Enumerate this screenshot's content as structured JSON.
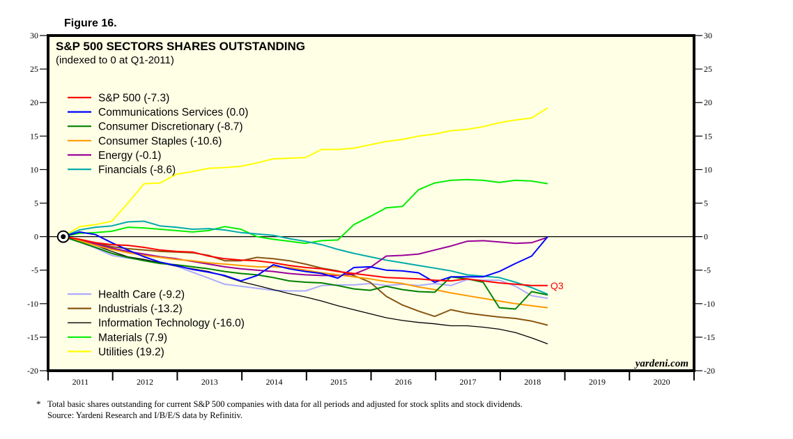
{
  "figure_label": "Figure 16.",
  "footnote": {
    "marker": "*",
    "line1": "Total basic shares outstanding for current S&P 500 companies with data for all periods and adjusted for stock splits and stock dividends.",
    "line2": "Source: Yardeni Research and I/B/E/S data by Refinitiv."
  },
  "watermark": "yardeni.com",
  "end_label": "Q3",
  "chart_data": {
    "type": "line",
    "title": "S&P 500 SECTORS SHARES OUTSTANDING",
    "subtitle": "(indexed to 0 at Q1-2011)",
    "xlabel": "",
    "ylabel": "",
    "ylim": [
      -20,
      30
    ],
    "xlim": [
      2010.75,
      2021.0
    ],
    "yticks": [
      -20,
      -15,
      -10,
      -5,
      0,
      5,
      10,
      15,
      20,
      25,
      30
    ],
    "xticks": [
      "2011",
      "2012",
      "2013",
      "2014",
      "2015",
      "2016",
      "2017",
      "2018",
      "2019",
      "2020"
    ],
    "grid": false,
    "zero_line": true,
    "legend_placement": "top-left and bottom-left",
    "x_start": "Q1-2011",
    "x_end": "Q3-2018",
    "x_step": "quarter",
    "series": [
      {
        "name": "S&P 500 (-7.3)",
        "color": "#ff0000",
        "legend_group": "top",
        "values": [
          0,
          -0.4,
          -0.9,
          -1.2,
          -1.3,
          -1.6,
          -2.0,
          -2.2,
          -2.3,
          -2.9,
          -3.3,
          -3.5,
          -3.6,
          -3.9,
          -4.3,
          -4.6,
          -4.8,
          -5.2,
          -5.5,
          -5.8,
          -6.1,
          -6.2,
          -6.3,
          -6.5,
          -6.6,
          -6.3,
          -6.6,
          -6.9,
          -7.1,
          -7.3,
          -7.3
        ]
      },
      {
        "name": "Communications Services (0.0)",
        "color": "#0000ff",
        "legend_group": "top",
        "values": [
          0,
          0.7,
          0.3,
          -0.9,
          -2.0,
          -3.0,
          -3.8,
          -4.3,
          -4.9,
          -5.3,
          -5.8,
          -6.6,
          -5.8,
          -4.2,
          -4.8,
          -5.2,
          -5.5,
          -6.2,
          -4.6,
          -4.5,
          -5.0,
          -5.1,
          -5.4,
          -6.8,
          -6.0,
          -6.0,
          -6.0,
          -5.2,
          -4.0,
          -2.9,
          0.0
        ]
      },
      {
        "name": "Consumer Discretionary (-8.7)",
        "color": "#008000",
        "legend_group": "top",
        "values": [
          0,
          -0.8,
          -1.6,
          -2.5,
          -3.1,
          -3.6,
          -4.0,
          -4.2,
          -4.5,
          -4.8,
          -5.2,
          -5.5,
          -5.7,
          -6.1,
          -6.6,
          -6.8,
          -6.9,
          -7.3,
          -7.8,
          -8.0,
          -7.4,
          -7.9,
          -8.2,
          -8.3,
          -6.0,
          -6.3,
          -6.8,
          -10.6,
          -10.8,
          -8.2,
          -8.7
        ]
      },
      {
        "name": "Consumer Staples (-10.6)",
        "color": "#ff9900",
        "legend_group": "top",
        "values": [
          0,
          -0.6,
          -1.3,
          -1.9,
          -2.4,
          -2.8,
          -3.1,
          -3.4,
          -3.6,
          -3.9,
          -4.1,
          -4.3,
          -4.5,
          -4.5,
          -4.6,
          -5.0,
          -5.4,
          -5.7,
          -6.0,
          -6.3,
          -6.7,
          -7.0,
          -7.5,
          -7.9,
          -8.4,
          -8.8,
          -9.2,
          -9.6,
          -10.0,
          -10.3,
          -10.6
        ]
      },
      {
        "name": "Energy (-0.1)",
        "color": "#990099",
        "legend_group": "top",
        "values": [
          0,
          -0.5,
          -1.1,
          -1.7,
          -2.2,
          -2.6,
          -3.0,
          -3.3,
          -3.7,
          -4.1,
          -4.5,
          -4.8,
          -5.0,
          -5.2,
          -5.5,
          -5.7,
          -5.8,
          -5.8,
          -5.6,
          -4.6,
          -2.9,
          -2.8,
          -2.6,
          -2.0,
          -1.4,
          -0.7,
          -0.6,
          -0.8,
          -1.0,
          -0.9,
          -0.1
        ]
      },
      {
        "name": "Financials (-8.6)",
        "color": "#00aaaa",
        "legend_group": "top",
        "values": [
          0,
          1.0,
          1.4,
          1.6,
          2.2,
          2.3,
          1.6,
          1.4,
          1.1,
          1.2,
          1.0,
          0.6,
          0.4,
          0.2,
          -0.3,
          -0.7,
          -1.2,
          -1.9,
          -2.5,
          -3.0,
          -3.5,
          -3.9,
          -4.3,
          -4.7,
          -5.1,
          -5.7,
          -5.9,
          -6.1,
          -6.8,
          -7.6,
          -8.6
        ]
      },
      {
        "name": "Health Care (-9.2)",
        "color": "#aaaaff",
        "legend_group": "bottom",
        "values": [
          0,
          -0.8,
          -1.7,
          -2.8,
          -3.2,
          -3.5,
          -3.9,
          -4.4,
          -5.3,
          -6.2,
          -7.1,
          -7.4,
          -7.7,
          -8.0,
          -8.1,
          -8.1,
          -7.3,
          -7.2,
          -7.2,
          -7.0,
          -7.3,
          -7.1,
          -7.3,
          -7.0,
          -7.3,
          -6.4,
          -6.5,
          -6.5,
          -7.4,
          -8.8,
          -9.2
        ]
      },
      {
        "name": "Industrials (-13.2)",
        "color": "#885511",
        "legend_group": "bottom",
        "values": [
          0,
          -0.4,
          -0.9,
          -1.5,
          -1.8,
          -2.0,
          -2.2,
          -2.3,
          -2.4,
          -2.8,
          -3.6,
          -3.6,
          -3.1,
          -3.3,
          -3.6,
          -4.1,
          -4.7,
          -5.1,
          -5.8,
          -6.8,
          -8.9,
          -10.2,
          -11.1,
          -11.9,
          -10.9,
          -11.4,
          -11.7,
          -12.0,
          -12.2,
          -12.6,
          -13.2
        ]
      },
      {
        "name": "Information Technology (-16.0)",
        "color": "#000000",
        "legend_group": "bottom",
        "values": [
          0,
          -0.6,
          -1.3,
          -2.2,
          -3.0,
          -3.4,
          -3.9,
          -4.4,
          -4.8,
          -5.2,
          -5.9,
          -6.7,
          -7.3,
          -7.9,
          -8.5,
          -9.0,
          -9.6,
          -10.3,
          -10.9,
          -11.5,
          -12.1,
          -12.5,
          -12.8,
          -13.0,
          -13.3,
          -13.3,
          -13.5,
          -13.8,
          -14.3,
          -15.1,
          -16.0
        ]
      },
      {
        "name": "Materials (7.9)",
        "color": "#00ee00",
        "legend_group": "bottom",
        "values": [
          0,
          0.5,
          0.6,
          0.8,
          1.4,
          1.3,
          1.1,
          0.9,
          0.7,
          0.9,
          1.5,
          1.1,
          0.0,
          -0.4,
          -0.7,
          -1.0,
          -0.6,
          -0.5,
          1.8,
          3.0,
          4.3,
          4.5,
          7.0,
          8.0,
          8.4,
          8.5,
          8.4,
          8.1,
          8.4,
          8.3,
          7.9
        ]
      },
      {
        "name": "Utilities (19.2)",
        "color": "#ffff00",
        "legend_group": "bottom",
        "values": [
          0,
          1.5,
          1.8,
          2.3,
          5.0,
          7.9,
          8.0,
          9.3,
          9.7,
          10.2,
          10.3,
          10.5,
          11.0,
          11.6,
          11.7,
          11.8,
          13.0,
          13.0,
          13.2,
          13.7,
          14.2,
          14.5,
          15.0,
          15.3,
          15.8,
          16.0,
          16.4,
          17.0,
          17.4,
          17.7,
          19.2
        ]
      }
    ]
  }
}
